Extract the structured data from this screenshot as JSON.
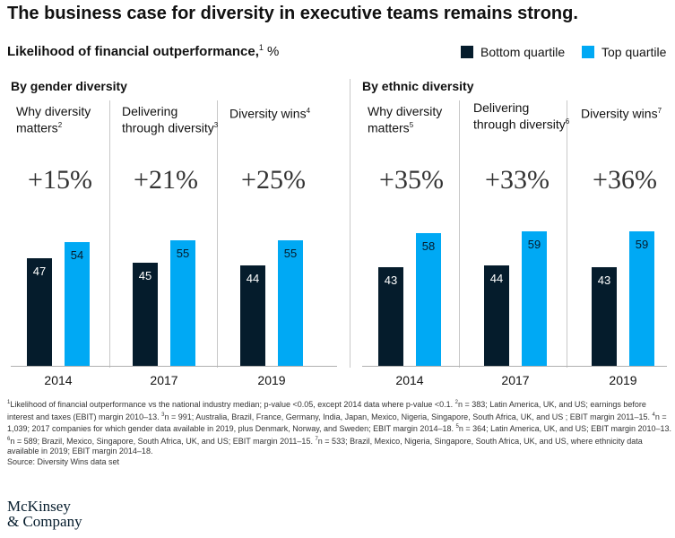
{
  "title": "The business case for diversity in executive teams remains strong.",
  "subtitle": {
    "label": "Likelihood of financial outperformance,",
    "footnote_marker": "1",
    "unit": " %"
  },
  "legend": {
    "bottom_label": "Bottom quartile",
    "top_label": "Top quartile",
    "bottom_color": "#051c2c",
    "top_color": "#00a9f4"
  },
  "chart_data": {
    "type": "bar",
    "unit": "%",
    "series_names": [
      "Bottom quartile",
      "Top quartile"
    ],
    "colors": {
      "bottom": "#051c2c",
      "top": "#00a9f4"
    },
    "ylim": [
      0,
      100
    ],
    "panels": [
      {
        "title": "By gender diversity",
        "groups": [
          {
            "label": "Why diversity matters",
            "marker": "2",
            "year": "2014",
            "difference": "+15%",
            "bottom": 47,
            "top": 54
          },
          {
            "label": "Delivering through diversity",
            "marker": "3",
            "year": "2017",
            "difference": "+21%",
            "bottom": 45,
            "top": 55
          },
          {
            "label": "Diversity wins",
            "marker": "4",
            "year": "2019",
            "difference": "+25%",
            "bottom": 44,
            "top": 55
          }
        ]
      },
      {
        "title": "By ethnic diversity",
        "groups": [
          {
            "label": "Why diversity matters",
            "marker": "5",
            "year": "2014",
            "difference": "+35%",
            "bottom": 43,
            "top": 58
          },
          {
            "label": "Delivering through diversity",
            "marker": "6",
            "year": "2017",
            "difference": "+33%",
            "bottom": 44,
            "top": 59
          },
          {
            "label": "Diversity wins",
            "marker": "7",
            "year": "2019",
            "difference": "+36%",
            "bottom": 43,
            "top": 59
          }
        ]
      }
    ]
  },
  "footnotes": [
    {
      "marker": "1",
      "text": "Likelihood of financial outperformance vs the national industry median; p-value <0.05, except 2014 data where p-value <0.1. "
    },
    {
      "marker": "2",
      "text": "n = 383; Latin America, UK, and US; earnings before interest and taxes (EBIT) margin 2010–13. "
    },
    {
      "marker": "3",
      "text": "n = 991; Australia, Brazil, France, Germany, India, Japan, Mexico, Nigeria, Singapore, South Africa, UK, and US ; EBIT margin 2011–15. "
    },
    {
      "marker": "4",
      "text": "n = 1,039; 2017 companies for which gender data available in 2019, plus Denmark, Norway, and Sweden;  EBIT margin 2014–18. "
    },
    {
      "marker": "5",
      "text": "n = 364; Latin America, UK, and US; EBIT margin 2010–13. "
    },
    {
      "marker": "6",
      "text": "n = 589; Brazil, Mexico, Singapore, South Africa, UK, and US; EBIT margin 2011–15. "
    },
    {
      "marker": "7",
      "text": "n = 533; Brazil, Mexico, Nigeria, Singapore, South Africa, UK, and US, where ethnicity data available in 2019; EBIT margin 2014–18."
    }
  ],
  "source": "Source: Diversity Wins data set",
  "logo": {
    "line1": "McKinsey",
    "line2": "& Company"
  }
}
